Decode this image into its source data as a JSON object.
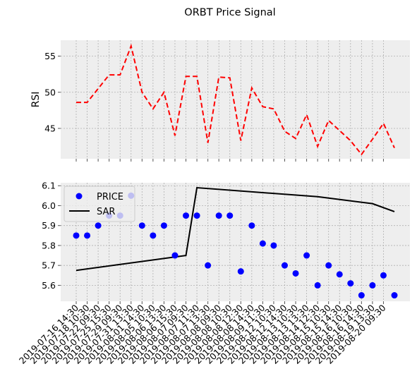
{
  "title": "ORBT Price Signal",
  "colors": {
    "rsi_line": "#ff0000",
    "price_marker": "#0000ff",
    "sar_line": "#000000",
    "axes_bg": "#eeeeee",
    "grid": "#b0b0b0"
  },
  "chart_data": [
    {
      "type": "line",
      "name": "rsi-panel",
      "ylabel": "RSI",
      "ylim": [
        40.8,
        57.2
      ],
      "yticks": [
        45,
        50,
        55
      ],
      "grid": true,
      "series": [
        {
          "name": "",
          "style": "dashed",
          "values": [
            48.6,
            48.6,
            50.5,
            52.4,
            52.4,
            56.4,
            50.0,
            47.7,
            50.0,
            44.0,
            52.2,
            52.2,
            43.0,
            52.1,
            52.0,
            43.3,
            50.6,
            48.0,
            47.7,
            44.6,
            43.6,
            46.9,
            42.5,
            46.1,
            44.7,
            43.3,
            41.4,
            43.5,
            45.7,
            42.3
          ]
        }
      ]
    },
    {
      "type": "scatter",
      "name": "price-panel",
      "ylabel": "",
      "ylim": [
        5.52,
        6.115
      ],
      "yticks": [
        5.6,
        5.7,
        5.8,
        5.9,
        6.0,
        6.1
      ],
      "grid": true,
      "legend": "top-left",
      "categories": [
        "2019-07-16 14:30",
        "2019-07-18 10:30",
        "2019-07-22 09:30",
        "2019-07-25 15:30",
        "2019-07-29 09:30",
        "2019-07-31 13:30",
        "2019-08-01 14:30",
        "2019-08-05 10:30",
        "2019-08-06 13:30",
        "2019-08-06 15:30",
        "2019-08-07 09:30",
        "2019-08-07 11:30",
        "2019-08-07 13:30",
        "2019-08-08 09:30",
        "2019-08-08 10:30",
        "2019-08-08 12:30",
        "2019-08-08 14:30",
        "2019-08-09 11:30",
        "2019-08-12 10:30",
        "2019-08-12 14:30",
        "2019-08-13 10:30",
        "2019-08-13 13:30",
        "2019-08-14 12:30",
        "2019-08-15 10:30",
        "2019-08-15 14:30",
        "2019-08-16 10:30",
        "2019-08-16 14:30",
        "2019-08-19 13:30",
        "2019-08-20 09:30",
        "2019-08-20 09:30"
      ],
      "xtick_labels": [
        "2019-07-16 14:30",
        "2019-07-18 10:30",
        "2019-07-22 09:30",
        "2019-07-25 15:30",
        "2019-07-29 09:30",
        "2019-07-31 13:30",
        "2019-08-01 14:30",
        "2019-08-05 10:30",
        "2019-08-06 13:30",
        "2019-08-06 15:30",
        "2019-08-07 09:30",
        "2019-08-07 11:30",
        "2019-08-07 13:30",
        "2019-08-08 09:30",
        "2019-08-08 10:30",
        "2019-08-08 12:30",
        "2019-08-08 14:30",
        "2019-08-09 11:30",
        "2019-08-12 10:30",
        "2019-08-12 14:30",
        "2019-08-13 10:30",
        "2019-08-13 13:30",
        "2019-08-14 12:30",
        "2019-08-15 10:30",
        "2019-08-15 14:30",
        "2019-08-16 10:30",
        "2019-08-16 14:30",
        "2019-08-19 13:30",
        "2019-08-20 09:30"
      ],
      "series": [
        {
          "name": "PRICE",
          "marker": "circle",
          "values": [
            5.85,
            5.85,
            5.9,
            5.95,
            5.95,
            6.05,
            5.9,
            5.85,
            5.9,
            5.75,
            5.95,
            5.95,
            5.7,
            5.95,
            5.95,
            5.67,
            5.9,
            5.81,
            5.8,
            5.7,
            5.66,
            5.75,
            5.6,
            5.7,
            5.655,
            5.61,
            5.55,
            5.6,
            5.65,
            5.55
          ]
        },
        {
          "name": "SAR",
          "style": "solid",
          "points": [
            [
              0,
              5.675
            ],
            [
              10,
              5.75
            ],
            [
              11,
              6.09
            ],
            [
              22,
              6.045
            ],
            [
              27,
              6.01
            ],
            [
              29,
              5.97
            ]
          ]
        }
      ]
    }
  ]
}
